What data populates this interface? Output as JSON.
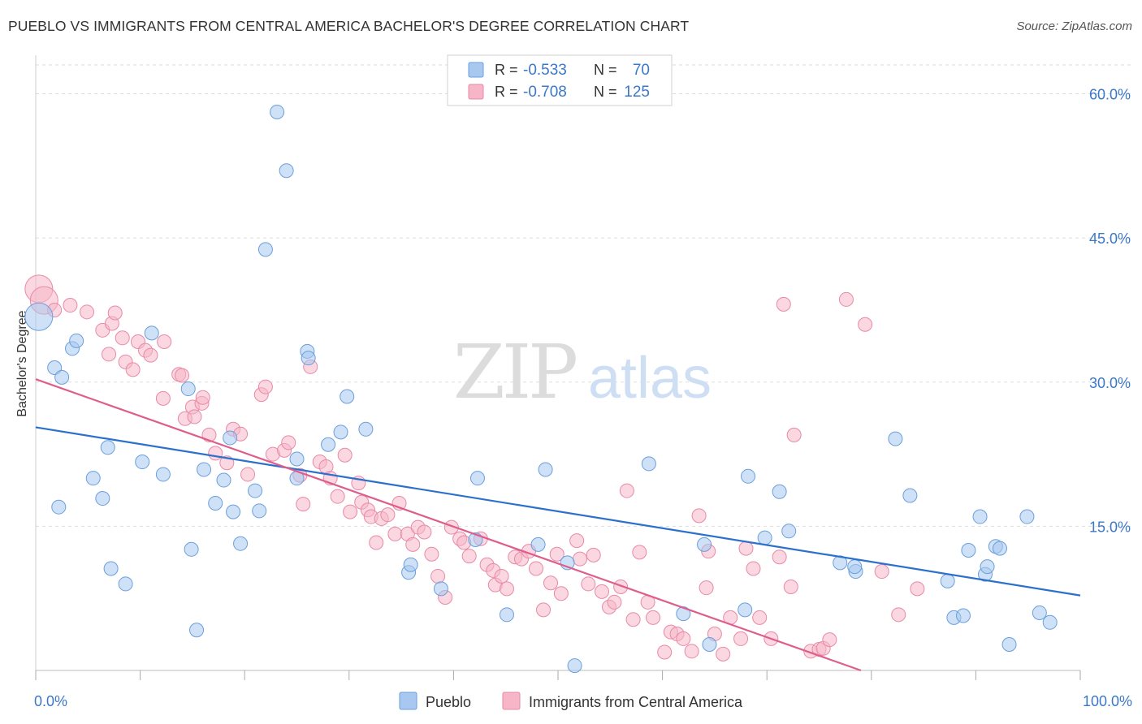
{
  "title": "PUEBLO VS IMMIGRANTS FROM CENTRAL AMERICA BACHELOR'S DEGREE CORRELATION CHART",
  "source": "Source: ZipAtlas.com",
  "watermark": {
    "zip": "ZIP",
    "atlas": "atlas"
  },
  "colors": {
    "pueblo_fill": "#a8c8f0",
    "pueblo_stroke": "#6a9fdc",
    "pueblo_line": "#2a70cc",
    "imm_fill": "#f6b6c8",
    "imm_stroke": "#e88aa6",
    "imm_line": "#de5d8c",
    "tick_label": "#3b78c8",
    "grid": "#dddddd"
  },
  "legend": [
    {
      "r_label": "R =",
      "r_value": "-0.533",
      "n_label": "N =",
      "n_value": "70"
    },
    {
      "r_label": "R =",
      "r_value": "-0.708",
      "n_label": "N =",
      "n_value": "125"
    }
  ],
  "chart_data": {
    "type": "scatter",
    "title": "PUEBLO VS IMMIGRANTS FROM CENTRAL AMERICA BACHELOR'S DEGREE CORRELATION CHART",
    "xlabel": "",
    "ylabel": "Bachelor's Degree",
    "xlim": [
      0,
      100
    ],
    "ylim": [
      0,
      63
    ],
    "x_tick_labels": [
      "0.0%",
      "100.0%"
    ],
    "y_ticks": [
      15,
      30,
      45,
      60
    ],
    "y_tick_labels": [
      "15.0%",
      "30.0%",
      "45.0%",
      "60.0%"
    ],
    "grid": true,
    "legend_position": "top-center",
    "series": [
      {
        "name": "Pueblo",
        "trend": {
          "x": [
            0,
            100
          ],
          "y": [
            25.3,
            7.8
          ]
        },
        "points": [
          [
            0.3,
            36.8,
            1
          ],
          [
            1.8,
            31.5,
            0
          ],
          [
            2.5,
            30.5,
            0
          ],
          [
            3.5,
            33.5,
            0
          ],
          [
            2.2,
            17.0,
            0
          ],
          [
            3.9,
            34.3,
            0
          ],
          [
            6.9,
            23.2,
            0
          ],
          [
            6.4,
            17.9,
            0
          ],
          [
            7.2,
            10.6,
            0
          ],
          [
            5.5,
            20.0,
            0
          ],
          [
            8.6,
            9.0,
            0
          ],
          [
            10.2,
            21.7,
            0
          ],
          [
            11.1,
            35.1,
            0
          ],
          [
            12.2,
            20.4,
            0
          ],
          [
            14.6,
            29.3,
            0
          ],
          [
            14.9,
            12.6,
            0
          ],
          [
            15.4,
            4.2,
            0
          ],
          [
            16.1,
            20.9,
            0
          ],
          [
            17.2,
            17.4,
            0
          ],
          [
            18.0,
            19.8,
            0
          ],
          [
            18.6,
            24.2,
            0
          ],
          [
            18.9,
            16.5,
            0
          ],
          [
            19.6,
            13.2,
            0
          ],
          [
            21.0,
            18.7,
            0
          ],
          [
            21.4,
            16.6,
            0
          ],
          [
            22.0,
            43.8,
            0
          ],
          [
            23.1,
            58.1,
            0
          ],
          [
            24.0,
            52.0,
            0
          ],
          [
            25.0,
            20.0,
            0
          ],
          [
            25.0,
            22.0,
            0
          ],
          [
            26.0,
            33.2,
            0
          ],
          [
            26.1,
            32.5,
            0
          ],
          [
            28.0,
            23.5,
            0
          ],
          [
            29.2,
            24.8,
            0
          ],
          [
            29.8,
            28.5,
            0
          ],
          [
            31.6,
            25.1,
            0
          ],
          [
            35.7,
            10.2,
            0
          ],
          [
            35.9,
            11.0,
            0
          ],
          [
            38.8,
            8.5,
            0
          ],
          [
            42.1,
            13.6,
            0
          ],
          [
            42.3,
            20.0,
            0
          ],
          [
            45.1,
            5.8,
            0
          ],
          [
            48.8,
            20.9,
            0
          ],
          [
            48.1,
            13.1,
            0
          ],
          [
            50.9,
            11.2,
            0
          ],
          [
            51.6,
            0.5,
            0
          ],
          [
            58.7,
            21.5,
            0
          ],
          [
            62.0,
            5.9,
            0
          ],
          [
            64.0,
            13.1,
            0
          ],
          [
            64.5,
            2.7,
            0
          ],
          [
            67.9,
            6.3,
            0
          ],
          [
            68.2,
            20.2,
            0
          ],
          [
            69.8,
            13.8,
            0
          ],
          [
            71.2,
            18.6,
            0
          ],
          [
            72.1,
            14.5,
            0
          ],
          [
            77.0,
            11.2,
            0
          ],
          [
            78.5,
            10.3,
            0
          ],
          [
            78.4,
            10.8,
            0
          ],
          [
            82.3,
            24.1,
            0
          ],
          [
            83.7,
            18.2,
            0
          ],
          [
            87.3,
            9.3,
            0
          ],
          [
            87.9,
            5.5,
            0
          ],
          [
            88.8,
            5.7,
            0
          ],
          [
            89.3,
            12.5,
            0
          ],
          [
            90.4,
            16.0,
            0
          ],
          [
            90.9,
            10.0,
            0
          ],
          [
            91.1,
            10.8,
            0
          ],
          [
            91.9,
            12.9,
            0
          ],
          [
            92.3,
            12.7,
            0
          ],
          [
            93.2,
            2.7,
            0
          ],
          [
            94.9,
            16.0,
            0
          ],
          [
            96.1,
            6.0,
            0
          ],
          [
            97.1,
            5.0,
            0
          ]
        ]
      },
      {
        "name": "Immigrants from Central America",
        "trend": {
          "x": [
            0,
            79
          ],
          "y": [
            30.3,
            0
          ]
        },
        "points": [
          [
            0.3,
            39.7,
            1
          ],
          [
            0.8,
            38.5,
            1
          ],
          [
            1.8,
            37.5,
            0
          ],
          [
            3.3,
            38.0,
            0
          ],
          [
            4.9,
            37.3,
            0
          ],
          [
            6.4,
            35.4,
            0
          ],
          [
            7.0,
            32.9,
            0
          ],
          [
            7.3,
            36.1,
            0
          ],
          [
            7.6,
            37.2,
            0
          ],
          [
            8.3,
            34.6,
            0
          ],
          [
            8.6,
            32.1,
            0
          ],
          [
            9.3,
            31.3,
            0
          ],
          [
            9.8,
            34.2,
            0
          ],
          [
            10.5,
            33.3,
            0
          ],
          [
            11.0,
            32.8,
            0
          ],
          [
            12.3,
            34.2,
            0
          ],
          [
            12.2,
            28.3,
            0
          ],
          [
            13.7,
            30.8,
            0
          ],
          [
            14.0,
            30.7,
            0
          ],
          [
            14.3,
            26.2,
            0
          ],
          [
            15.0,
            27.4,
            0
          ],
          [
            15.2,
            26.4,
            0
          ],
          [
            15.9,
            27.8,
            0
          ],
          [
            16.0,
            28.4,
            0
          ],
          [
            16.6,
            24.5,
            0
          ],
          [
            17.2,
            22.6,
            0
          ],
          [
            18.3,
            21.6,
            0
          ],
          [
            18.9,
            25.1,
            0
          ],
          [
            19.6,
            24.6,
            0
          ],
          [
            20.3,
            20.4,
            0
          ],
          [
            21.6,
            28.7,
            0
          ],
          [
            22.0,
            29.5,
            0
          ],
          [
            22.7,
            22.5,
            0
          ],
          [
            23.8,
            22.9,
            0
          ],
          [
            24.2,
            23.7,
            0
          ],
          [
            25.3,
            20.3,
            0
          ],
          [
            25.6,
            17.3,
            0
          ],
          [
            26.3,
            31.6,
            0
          ],
          [
            27.2,
            21.7,
            0
          ],
          [
            27.8,
            21.2,
            0
          ],
          [
            28.2,
            20.0,
            0
          ],
          [
            28.9,
            18.1,
            0
          ],
          [
            29.6,
            22.4,
            0
          ],
          [
            30.1,
            16.5,
            0
          ],
          [
            30.9,
            19.5,
            0
          ],
          [
            31.2,
            17.5,
            0
          ],
          [
            31.8,
            16.7,
            0
          ],
          [
            32.1,
            16.0,
            0
          ],
          [
            32.6,
            13.3,
            0
          ],
          [
            33.1,
            15.8,
            0
          ],
          [
            33.7,
            16.2,
            0
          ],
          [
            34.4,
            14.2,
            0
          ],
          [
            34.8,
            17.4,
            0
          ],
          [
            35.6,
            14.2,
            0
          ],
          [
            36.1,
            13.1,
            0
          ],
          [
            36.6,
            14.9,
            0
          ],
          [
            37.2,
            14.4,
            0
          ],
          [
            37.9,
            12.1,
            0
          ],
          [
            38.5,
            9.8,
            0
          ],
          [
            39.2,
            7.6,
            0
          ],
          [
            39.8,
            14.9,
            0
          ],
          [
            40.6,
            13.7,
            0
          ],
          [
            41.0,
            13.3,
            0
          ],
          [
            41.5,
            11.9,
            0
          ],
          [
            42.6,
            13.7,
            0
          ],
          [
            43.2,
            11.0,
            0
          ],
          [
            43.8,
            10.4,
            0
          ],
          [
            44.0,
            8.9,
            0
          ],
          [
            44.6,
            9.8,
            0
          ],
          [
            45.1,
            8.5,
            0
          ],
          [
            45.9,
            11.8,
            0
          ],
          [
            46.5,
            11.6,
            0
          ],
          [
            47.2,
            12.4,
            0
          ],
          [
            47.9,
            10.6,
            0
          ],
          [
            48.6,
            6.3,
            0
          ],
          [
            49.3,
            9.1,
            0
          ],
          [
            49.9,
            12.1,
            0
          ],
          [
            50.3,
            8.0,
            0
          ],
          [
            51.8,
            13.5,
            0
          ],
          [
            52.1,
            11.6,
            0
          ],
          [
            52.9,
            9.0,
            0
          ],
          [
            53.4,
            12.0,
            0
          ],
          [
            54.2,
            8.2,
            0
          ],
          [
            54.9,
            6.6,
            0
          ],
          [
            55.4,
            7.1,
            0
          ],
          [
            56.0,
            8.7,
            0
          ],
          [
            56.6,
            18.7,
            0
          ],
          [
            57.2,
            5.3,
            0
          ],
          [
            57.8,
            12.3,
            0
          ],
          [
            58.6,
            7.1,
            0
          ],
          [
            59.1,
            5.5,
            0
          ],
          [
            60.2,
            1.9,
            0
          ],
          [
            60.8,
            4.0,
            0
          ],
          [
            61.4,
            3.8,
            0
          ],
          [
            62.0,
            3.3,
            0
          ],
          [
            62.8,
            2.0,
            0
          ],
          [
            63.5,
            16.1,
            0
          ],
          [
            64.2,
            8.6,
            0
          ],
          [
            64.4,
            12.4,
            0
          ],
          [
            65.0,
            3.8,
            0
          ],
          [
            65.8,
            1.7,
            0
          ],
          [
            66.5,
            5.5,
            0
          ],
          [
            67.5,
            3.3,
            0
          ],
          [
            68.0,
            12.7,
            0
          ],
          [
            68.7,
            10.6,
            0
          ],
          [
            69.3,
            5.5,
            0
          ],
          [
            70.4,
            3.3,
            0
          ],
          [
            71.2,
            11.8,
            0
          ],
          [
            71.6,
            38.1,
            0
          ],
          [
            72.3,
            8.7,
            0
          ],
          [
            72.6,
            24.5,
            0
          ],
          [
            74.2,
            2.0,
            0
          ],
          [
            75.0,
            2.2,
            0
          ],
          [
            75.4,
            2.3,
            0
          ],
          [
            76.0,
            3.2,
            0
          ],
          [
            77.6,
            38.6,
            0
          ],
          [
            79.4,
            36.0,
            0
          ],
          [
            81.0,
            10.3,
            0
          ],
          [
            82.6,
            5.8,
            0
          ],
          [
            84.4,
            8.5,
            0
          ]
        ]
      }
    ]
  },
  "legend_series": [
    {
      "name": "Pueblo"
    },
    {
      "name": "Immigrants from Central America"
    }
  ]
}
